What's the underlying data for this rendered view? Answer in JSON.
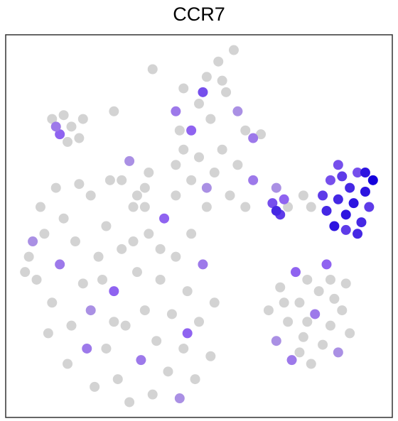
{
  "chart_data": {
    "type": "scatter",
    "title": "CCR7",
    "xlim": [
      0,
      100
    ],
    "ylim": [
      0,
      100
    ],
    "colorlim": [
      0,
      1
    ],
    "colors": [
      "#d3d3d3",
      "#8f63f0",
      "#1400dc"
    ],
    "x": [
      6,
      8,
      10,
      12,
      9,
      14,
      15,
      17,
      18,
      20,
      22,
      22,
      24,
      26,
      26,
      28,
      29,
      30,
      31,
      33,
      34,
      35,
      36,
      37,
      38,
      39,
      40,
      41,
      42,
      43,
      44,
      45,
      46,
      47,
      48,
      49,
      50,
      51,
      52,
      53,
      13,
      19,
      7,
      11,
      16,
      23,
      27,
      32,
      44,
      54,
      5,
      21,
      36,
      47,
      28,
      33,
      40,
      25,
      68,
      70,
      71,
      73,
      74,
      75,
      76,
      77,
      78,
      79,
      80,
      81,
      82,
      83,
      84,
      85,
      86,
      87,
      88,
      89,
      72,
      78,
      84,
      76,
      82,
      83,
      84,
      85,
      86,
      87,
      88,
      89,
      90,
      91,
      92,
      93,
      94,
      95,
      88,
      86,
      91,
      93,
      69,
      70,
      71,
      72,
      73,
      70,
      77,
      79,
      12,
      14,
      15,
      17,
      19,
      20,
      16,
      13,
      28,
      38,
      44,
      46,
      48,
      50,
      52,
      53,
      55,
      57,
      59,
      60,
      62,
      64,
      66,
      51,
      45,
      56,
      30,
      32,
      34,
      37,
      44,
      46,
      48,
      50,
      52,
      54,
      56,
      58,
      60,
      62,
      64,
      36
    ],
    "y": [
      42,
      36,
      48,
      30,
      55,
      40,
      52,
      24,
      46,
      35,
      58,
      28,
      42,
      50,
      18,
      33,
      10,
      44,
      24,
      55,
      38,
      15,
      28,
      48,
      6,
      20,
      36,
      52,
      12,
      27,
      42,
      5,
      18,
      33,
      48,
      10,
      25,
      40,
      55,
      16,
      60,
      61,
      46,
      22,
      14,
      8,
      62,
      4,
      58,
      30,
      38,
      18,
      60,
      22,
      25,
      46,
      44,
      36,
      28,
      20,
      34,
      25,
      15,
      38,
      30,
      21,
      36,
      14,
      27,
      33,
      19,
      40,
      24,
      31,
      17,
      28,
      35,
      22,
      30,
      25,
      36,
      17,
      58,
      54,
      62,
      50,
      57,
      63,
      53,
      60,
      56,
      64,
      51,
      59,
      55,
      62,
      49,
      66,
      48,
      64,
      56,
      60,
      53,
      57,
      55,
      54,
      58,
      55,
      78,
      74,
      79,
      76,
      73,
      78,
      72,
      76,
      80,
      91,
      80,
      86,
      75,
      82,
      89,
      78,
      93,
      85,
      96,
      80,
      75,
      73,
      74,
      85,
      75,
      88,
      62,
      67,
      58,
      64,
      66,
      70,
      62,
      68,
      60,
      64,
      70,
      58,
      66,
      55,
      62,
      55
    ],
    "values": [
      0,
      0,
      0,
      0,
      0,
      0.4,
      0,
      0,
      0,
      0,
      0,
      0.3,
      0,
      0,
      0,
      0.5,
      0,
      0,
      0,
      0,
      0,
      0.4,
      0,
      0,
      0,
      0,
      0,
      0.5,
      0,
      0,
      0,
      0.3,
      0,
      0,
      0,
      0,
      0,
      0.4,
      0,
      0,
      0,
      0,
      0.3,
      0,
      0,
      0,
      0,
      0,
      0,
      0,
      0,
      0.4,
      0,
      0.5,
      0,
      0,
      0,
      0,
      0,
      0.3,
      0,
      0,
      0.4,
      0.5,
      0,
      0,
      0,
      0,
      0.4,
      0,
      0,
      0.5,
      0,
      0,
      0.3,
      0,
      0,
      0,
      0,
      0,
      0,
      0,
      0.7,
      0.8,
      0.6,
      0.9,
      0.8,
      0.7,
      0.9,
      0.8,
      0.9,
      0.6,
      0.8,
      0.9,
      0.7,
      1,
      0.7,
      0.6,
      0.8,
      0.9,
      0.6,
      0.3,
      0.7,
      0.5,
      0,
      0.8,
      0,
      0,
      0,
      0.5,
      0,
      0,
      0,
      0,
      0,
      0.4,
      0,
      0,
      0.4,
      0,
      0.5,
      0,
      0,
      0,
      0,
      0,
      0,
      0.3,
      0,
      0.4,
      0,
      0.6,
      0,
      0,
      0,
      0.3,
      0,
      0,
      0,
      0,
      0,
      0,
      0.3,
      0,
      0,
      0,
      0,
      0,
      0.4,
      0
    ]
  }
}
